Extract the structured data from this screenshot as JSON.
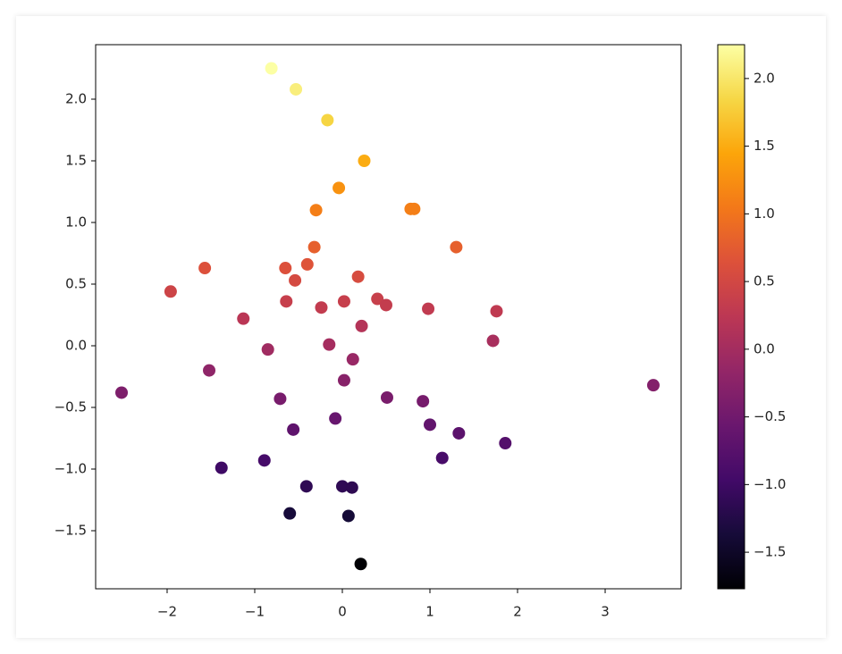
{
  "chart_data": {
    "type": "scatter",
    "x": [
      -0.81,
      -0.53,
      -0.17,
      0.25,
      -0.04,
      -0.3,
      0.78,
      0.82,
      1.3,
      -0.32,
      -1.57,
      -0.65,
      -0.4,
      -1.96,
      -0.54,
      0.18,
      -0.64,
      -0.24,
      0.02,
      0.4,
      0.5,
      0.98,
      1.76,
      -1.13,
      0.22,
      1.72,
      -0.15,
      -0.85,
      0.12,
      -1.52,
      0.02,
      -2.52,
      3.55,
      -0.71,
      0.51,
      0.92,
      -0.08,
      1.0,
      -0.56,
      1.33,
      1.86,
      -0.89,
      1.14,
      -1.38,
      -0.41,
      0.0,
      0.11,
      -0.6,
      0.07,
      0.21
    ],
    "series": [
      {
        "values": [
          2.25,
          2.08,
          1.83,
          1.5,
          1.28,
          1.1,
          1.11,
          1.11,
          0.8,
          0.8,
          0.63,
          0.63,
          0.66,
          0.44,
          0.53,
          0.56,
          0.36,
          0.31,
          0.36,
          0.38,
          0.33,
          0.3,
          0.28,
          0.22,
          0.16,
          0.04,
          0.01,
          -0.03,
          -0.11,
          -0.2,
          -0.28,
          -0.38,
          -0.32,
          -0.43,
          -0.42,
          -0.45,
          -0.59,
          -0.64,
          -0.68,
          -0.71,
          -0.79,
          -0.93,
          -0.91,
          -0.99,
          -1.14,
          -1.14,
          -1.15,
          -1.36,
          -1.38,
          -1.77
        ]
      }
    ],
    "xlim": [
      -2.816,
      3.867
    ],
    "ylim": [
      -1.971,
      2.442
    ],
    "xticks": [
      {
        "value": -2,
        "label": "−2"
      },
      {
        "value": -1,
        "label": "−1"
      },
      0,
      1,
      2,
      3
    ],
    "yticks": [
      {
        "value": -1.5,
        "label": "−1.5"
      },
      {
        "value": -1.0,
        "label": "−1.0"
      },
      {
        "value": -0.5,
        "label": "−0.5"
      },
      {
        "value": 0.0,
        "label": "0.0"
      },
      0.5,
      {
        "value": 1.0,
        "label": "1.0"
      },
      1.5,
      {
        "value": 2.0,
        "label": "2.0"
      }
    ],
    "colormap": "inferno",
    "colorbar": {
      "lim": [
        -1.77,
        2.25
      ],
      "ticks": [
        {
          "value": -1.5,
          "label": "−1.5"
        },
        {
          "value": -1.0,
          "label": "−1.0"
        },
        {
          "value": -0.5,
          "label": "−0.5"
        },
        {
          "value": 0.0,
          "label": "0.0"
        },
        0.5,
        {
          "value": 1.0,
          "label": "1.0"
        },
        1.5,
        {
          "value": 2.0,
          "label": "2.0"
        }
      ]
    }
  }
}
